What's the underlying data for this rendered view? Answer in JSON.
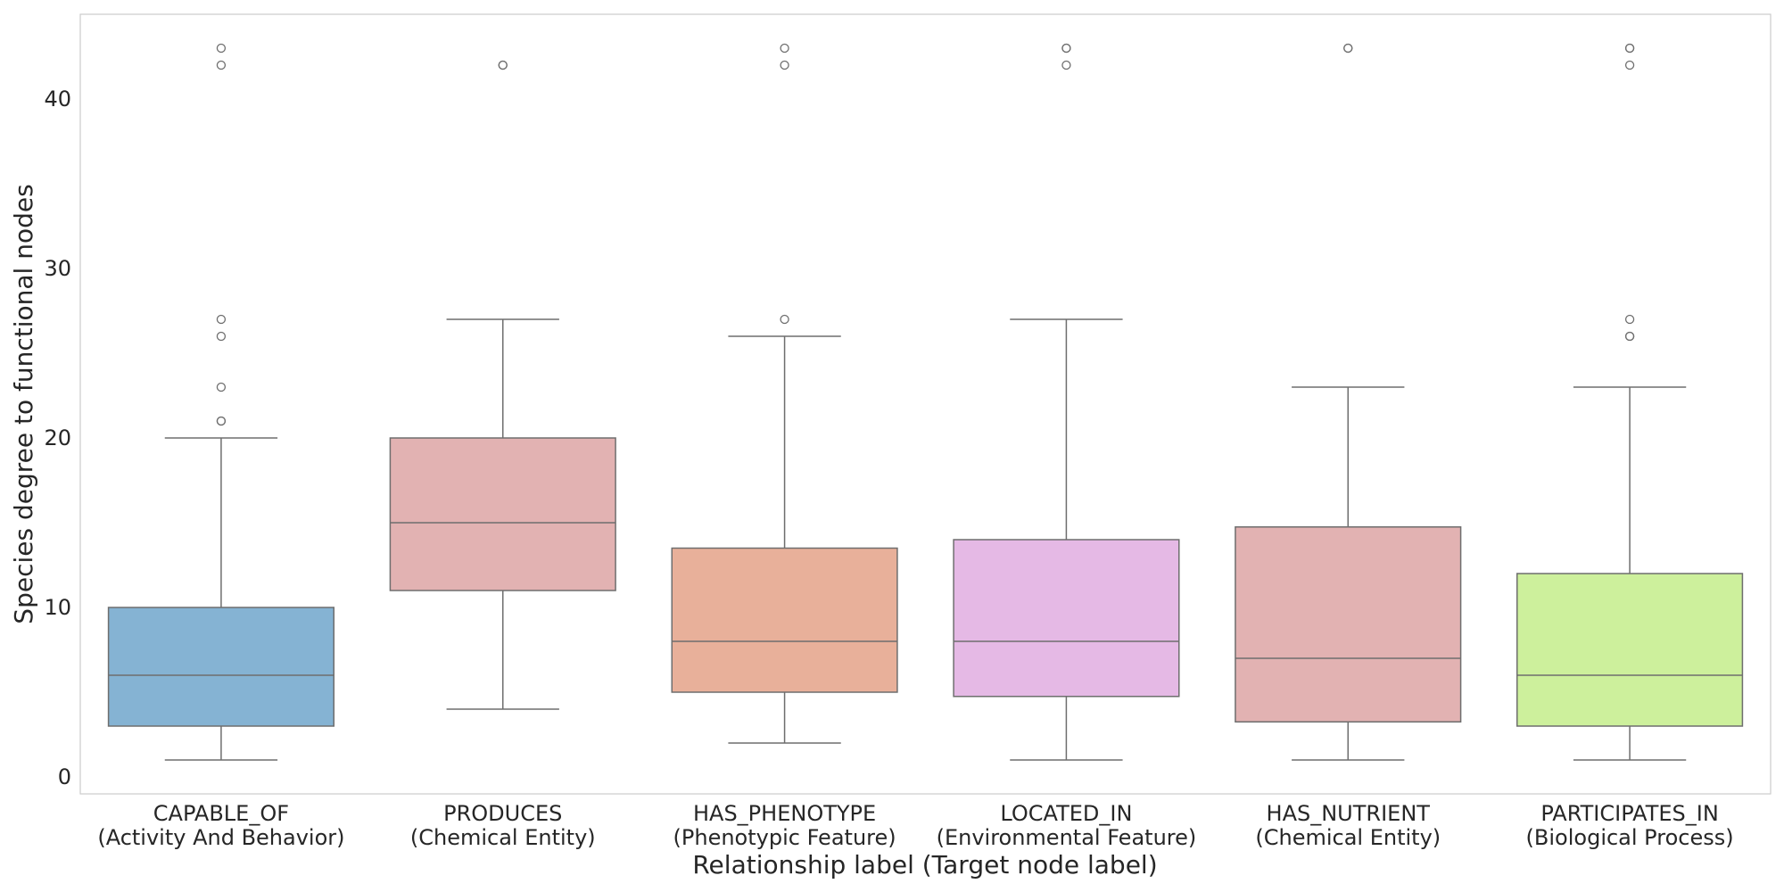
{
  "chart_data": {
    "type": "box",
    "xlabel": "Relationship label (Target node label)",
    "ylabel": "Species degree to functional nodes",
    "ylim": [
      -1,
      45
    ],
    "yticks": [
      0,
      10,
      20,
      30,
      40
    ],
    "grid": false,
    "categories": [
      {
        "line1": "CAPABLE_OF",
        "line2": "(Activity And Behavior)",
        "color": "#85b3d3",
        "q1": 3,
        "median": 6,
        "q3": 10,
        "whisker_low": 1,
        "whisker_high": 20,
        "outliers": [
          21,
          21,
          23,
          26,
          27,
          42,
          43
        ]
      },
      {
        "line1": "PRODUCES",
        "line2": "(Chemical Entity)",
        "color": "#e2b2b2",
        "q1": 11,
        "median": 15,
        "q3": 20,
        "whisker_low": 4,
        "whisker_high": 27,
        "outliers": [
          42,
          42
        ]
      },
      {
        "line1": "HAS_PHENOTYPE",
        "line2": "(Phenotypic Feature)",
        "color": "#e8b09a",
        "q1": 5,
        "median": 8,
        "q3": 13.5,
        "whisker_low": 2,
        "whisker_high": 26,
        "outliers": [
          27,
          42,
          43
        ]
      },
      {
        "line1": "LOCATED_IN",
        "line2": "(Environmental Feature)",
        "color": "#e5b9e5",
        "q1": 4.75,
        "median": 8,
        "q3": 14,
        "whisker_low": 1,
        "whisker_high": 27,
        "outliers": [
          42,
          43,
          43
        ]
      },
      {
        "line1": "HAS_NUTRIENT",
        "line2": "(Chemical Entity)",
        "color": "#e2b2b2",
        "q1": 3.25,
        "median": 7,
        "q3": 14.75,
        "whisker_low": 1,
        "whisker_high": 23,
        "outliers": [
          43,
          43
        ]
      },
      {
        "line1": "PARTICIPATES_IN",
        "line2": "(Biological Process)",
        "color": "#cdf09c",
        "q1": 3,
        "median": 6,
        "q3": 12,
        "whisker_low": 1,
        "whisker_high": 23,
        "outliers": [
          26,
          26,
          27,
          42,
          43,
          43
        ]
      }
    ]
  }
}
